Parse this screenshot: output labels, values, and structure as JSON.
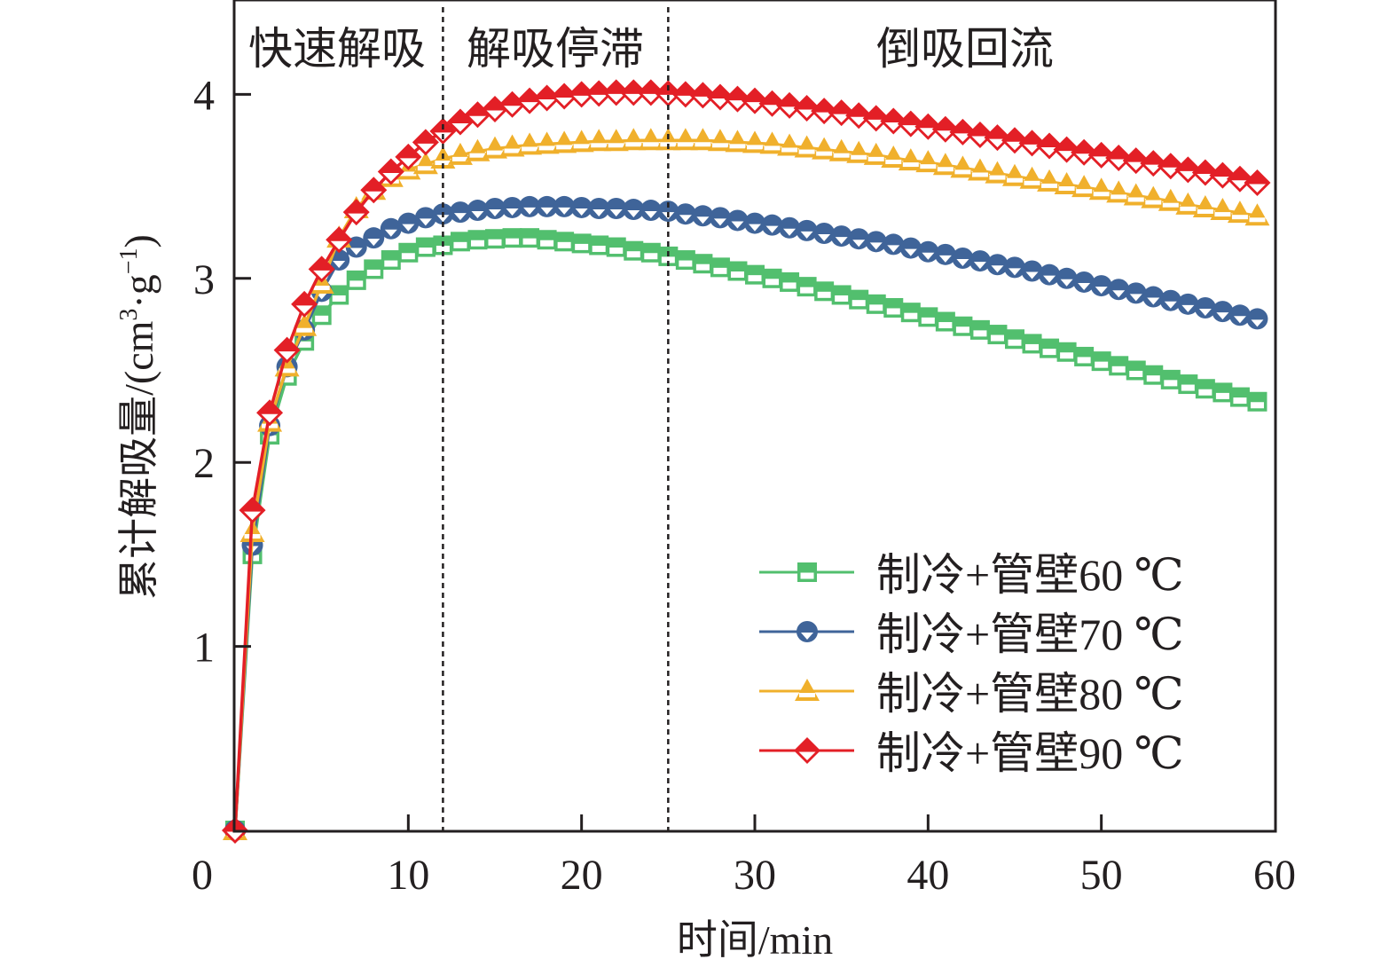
{
  "chart_data": {
    "type": "line",
    "title": "",
    "xlabel": "时间/min",
    "ylabel": "累计解吸量/(cm³·g⁻¹)",
    "ylabel_parts": {
      "main": "累计解吸量/(cm",
      "sup1": "3",
      "mid": "·g",
      "sup2": "−1",
      "end": ")"
    },
    "xlim": [
      0,
      60
    ],
    "ylim": [
      0,
      4.5
    ],
    "x_ticks": [
      0,
      10,
      20,
      30,
      40,
      50,
      60
    ],
    "x_tick_labels": [
      "0",
      "10",
      "20",
      "30",
      "40",
      "50",
      "60"
    ],
    "y_ticks": [
      1,
      2,
      3,
      4
    ],
    "y_tick_labels": [
      "1",
      "2",
      "3",
      "4"
    ],
    "grid": false,
    "legend_position": "bottom-right",
    "phase_dividers": [
      12,
      25
    ],
    "phase_labels": [
      {
        "text": "快速解吸",
        "x_center": 5.8
      },
      {
        "text": "解吸停滞",
        "x_center": 18.8
      },
      {
        "text": "倒吸回流",
        "x_center": 42
      }
    ],
    "x": [
      0,
      1,
      2,
      3,
      4,
      5,
      6,
      7,
      8,
      9,
      10,
      11,
      12,
      13,
      14,
      15,
      16,
      17,
      18,
      19,
      20,
      21,
      22,
      23,
      24,
      25,
      26,
      27,
      28,
      29,
      30,
      31,
      32,
      33,
      34,
      35,
      36,
      37,
      38,
      39,
      40,
      41,
      42,
      43,
      44,
      45,
      46,
      47,
      48,
      49,
      50,
      51,
      52,
      53,
      54,
      55,
      56,
      57,
      58,
      59
    ],
    "series": [
      {
        "name": "制冷+管壁60 ℃",
        "color": "#52bf6e",
        "marker": "square",
        "values": [
          0,
          1.5,
          2.15,
          2.47,
          2.66,
          2.8,
          2.91,
          2.99,
          3.05,
          3.1,
          3.14,
          3.17,
          3.18,
          3.2,
          3.21,
          3.215,
          3.22,
          3.22,
          3.21,
          3.2,
          3.19,
          3.18,
          3.17,
          3.15,
          3.14,
          3.12,
          3.1,
          3.08,
          3.06,
          3.04,
          3.02,
          3.0,
          2.98,
          2.955,
          2.93,
          2.91,
          2.885,
          2.86,
          2.84,
          2.815,
          2.79,
          2.765,
          2.74,
          2.72,
          2.695,
          2.67,
          2.645,
          2.62,
          2.6,
          2.575,
          2.55,
          2.525,
          2.5,
          2.475,
          2.45,
          2.425,
          2.4,
          2.38,
          2.355,
          2.33
        ]
      },
      {
        "name": "制冷+管壁70 ℃",
        "color": "#3f6499",
        "marker": "circle",
        "values": [
          0,
          1.55,
          2.2,
          2.52,
          2.72,
          2.93,
          3.1,
          3.17,
          3.22,
          3.27,
          3.3,
          3.33,
          3.35,
          3.36,
          3.37,
          3.38,
          3.385,
          3.39,
          3.39,
          3.39,
          3.385,
          3.38,
          3.38,
          3.375,
          3.37,
          3.365,
          3.35,
          3.34,
          3.33,
          3.315,
          3.3,
          3.29,
          3.275,
          3.26,
          3.245,
          3.23,
          3.215,
          3.2,
          3.185,
          3.165,
          3.145,
          3.13,
          3.11,
          3.095,
          3.075,
          3.06,
          3.04,
          3.02,
          3.0,
          2.98,
          2.96,
          2.94,
          2.92,
          2.9,
          2.88,
          2.86,
          2.84,
          2.82,
          2.8,
          2.78
        ]
      },
      {
        "name": "制冷+管壁80 ℃",
        "color": "#f0b02c",
        "marker": "triangle",
        "values": [
          0,
          1.62,
          2.22,
          2.52,
          2.74,
          2.97,
          3.22,
          3.38,
          3.48,
          3.55,
          3.59,
          3.62,
          3.65,
          3.67,
          3.69,
          3.705,
          3.715,
          3.725,
          3.73,
          3.735,
          3.74,
          3.745,
          3.745,
          3.75,
          3.75,
          3.75,
          3.75,
          3.75,
          3.745,
          3.74,
          3.735,
          3.73,
          3.72,
          3.71,
          3.7,
          3.69,
          3.68,
          3.67,
          3.655,
          3.64,
          3.63,
          3.615,
          3.6,
          3.585,
          3.57,
          3.555,
          3.54,
          3.525,
          3.51,
          3.495,
          3.48,
          3.465,
          3.45,
          3.435,
          3.42,
          3.4,
          3.385,
          3.37,
          3.355,
          3.34
        ]
      },
      {
        "name": "制冷+管壁90 ℃",
        "color": "#e31f26",
        "marker": "diamond",
        "values": [
          0,
          1.74,
          2.27,
          2.61,
          2.86,
          3.05,
          3.21,
          3.36,
          3.48,
          3.58,
          3.66,
          3.74,
          3.8,
          3.85,
          3.89,
          3.92,
          3.945,
          3.965,
          3.98,
          3.99,
          4.0,
          4.005,
          4.01,
          4.01,
          4.01,
          4.005,
          4.0,
          3.995,
          3.985,
          3.975,
          3.965,
          3.95,
          3.94,
          3.925,
          3.91,
          3.9,
          3.885,
          3.87,
          3.855,
          3.84,
          3.825,
          3.81,
          3.795,
          3.78,
          3.765,
          3.75,
          3.735,
          3.72,
          3.7,
          3.685,
          3.67,
          3.655,
          3.64,
          3.625,
          3.61,
          3.59,
          3.575,
          3.56,
          3.54,
          3.52
        ]
      }
    ]
  }
}
